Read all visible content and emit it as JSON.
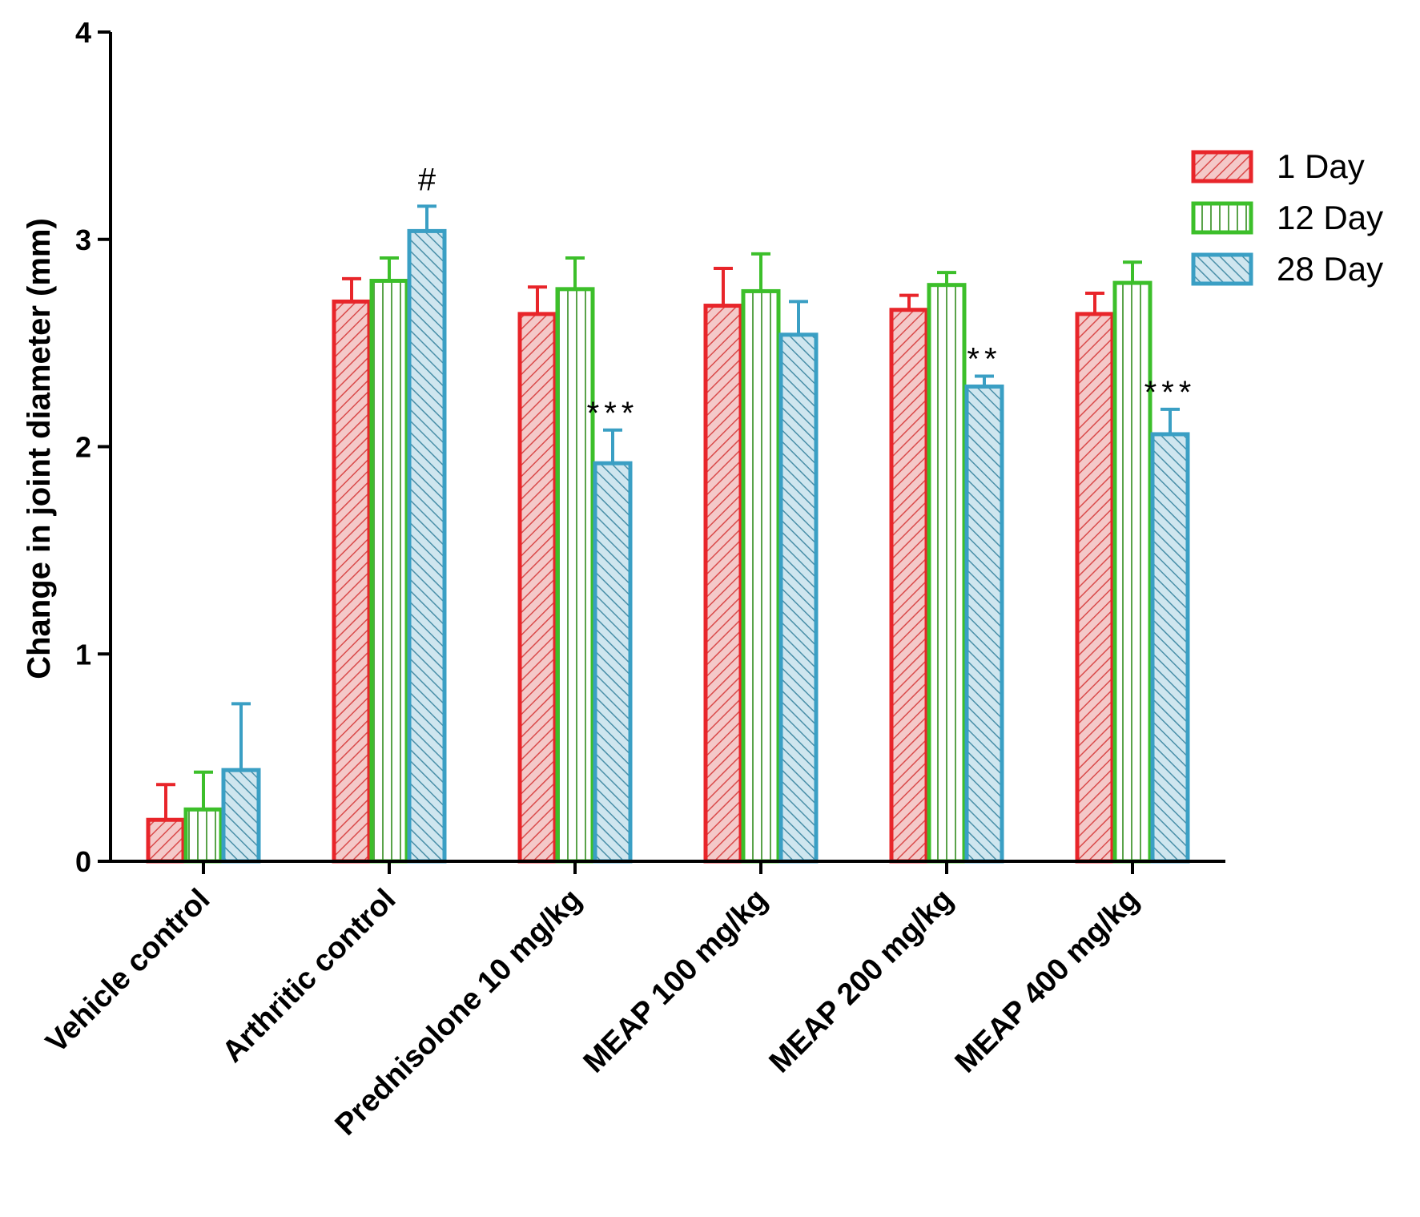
{
  "chart_data": {
    "type": "bar",
    "title": "",
    "xlabel": "",
    "ylabel": "Change in joint diameter (mm)",
    "ylim": [
      0,
      4
    ],
    "yticks": [
      "0",
      "1",
      "2",
      "3",
      "4"
    ],
    "categories": [
      "Vehicle control",
      "Arthritic control",
      "Prednisolone 10 mg/kg",
      "MEAP 100 mg/kg",
      "MEAP 200 mg/kg",
      "MEAP 400 mg/kg"
    ],
    "legend_position": "top-right",
    "series": [
      {
        "name": "1 Day",
        "color": "#e8252a",
        "pattern": "diagonal-forward",
        "values": [
          0.2,
          2.7,
          2.64,
          2.68,
          2.66,
          2.64
        ],
        "errors": [
          0.17,
          0.11,
          0.13,
          0.18,
          0.07,
          0.1
        ]
      },
      {
        "name": "12 Day",
        "color": "#3cbf2a",
        "pattern": "vertical",
        "values": [
          0.25,
          2.8,
          2.76,
          2.75,
          2.78,
          2.79
        ],
        "errors": [
          0.18,
          0.11,
          0.15,
          0.18,
          0.06,
          0.1
        ]
      },
      {
        "name": "28 Day",
        "color": "#3a9fc4",
        "pattern": "diagonal-backward",
        "values": [
          0.44,
          3.04,
          1.92,
          2.54,
          2.29,
          2.06
        ],
        "errors": [
          0.32,
          0.12,
          0.16,
          0.16,
          0.05,
          0.12
        ]
      }
    ],
    "annotations": [
      {
        "category_index": 1,
        "series_index": 2,
        "text": "#"
      },
      {
        "category_index": 2,
        "series_index": 2,
        "text": "***"
      },
      {
        "category_index": 4,
        "series_index": 2,
        "text": "**"
      },
      {
        "category_index": 5,
        "series_index": 2,
        "text": "***"
      }
    ]
  }
}
